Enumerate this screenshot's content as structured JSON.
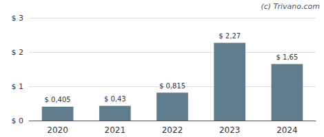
{
  "chart_data": {
    "type": "bar",
    "categories": [
      "2020",
      "2021",
      "2022",
      "2023",
      "2024"
    ],
    "values": [
      0.405,
      0.43,
      0.815,
      2.27,
      1.65
    ],
    "value_labels": [
      "$ 0,405",
      "$ 0,43",
      "$ 0,815",
      "$ 2,27",
      "$ 1,65"
    ],
    "data_labels": true,
    "color": "#5f7d8c",
    "ylim": [
      0,
      3.0
    ],
    "yticks": [
      {
        "value": 0,
        "label": "$ 0"
      },
      {
        "value": 1,
        "label": "$ 1"
      },
      {
        "value": 2,
        "label": "$ 2"
      },
      {
        "value": 3,
        "label": "$ 3"
      }
    ],
    "grid": true,
    "annotations": [
      "(c) Trivano.com"
    ]
  }
}
